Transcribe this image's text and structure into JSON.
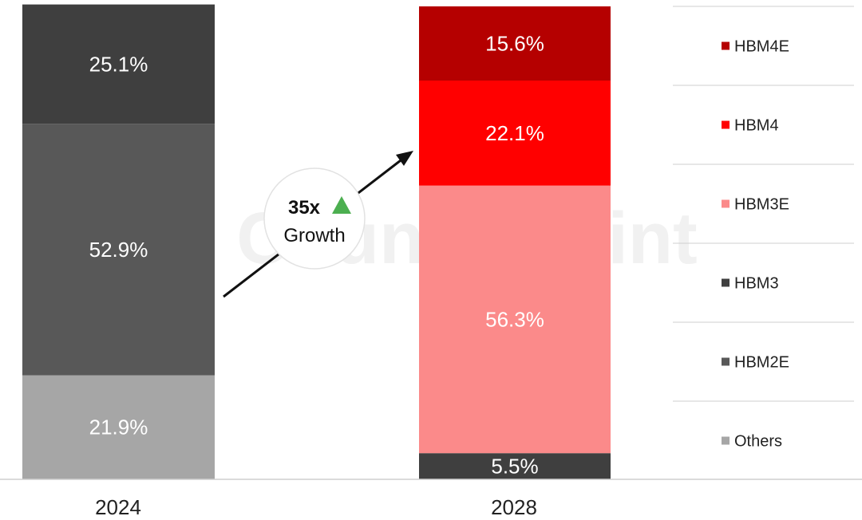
{
  "chart_data": {
    "type": "bar",
    "stacked": true,
    "percent": true,
    "categories": [
      "2024",
      "2028"
    ],
    "series": [
      {
        "name": "HBM4E",
        "color": "#b50000",
        "values": [
          0,
          15.6
        ],
        "labels": [
          null,
          "15.6%"
        ]
      },
      {
        "name": "HBM4",
        "color": "#ff0000",
        "values": [
          0,
          22.1
        ],
        "labels": [
          null,
          "22.1%"
        ]
      },
      {
        "name": "HBM3E",
        "color": "#fb8a8a",
        "values": [
          0,
          56.3
        ],
        "labels": [
          null,
          "56.3%"
        ]
      },
      {
        "name": "HBM3",
        "color": "#3f3f3f",
        "values": [
          25.1,
          5.5
        ],
        "labels": [
          "25.1%",
          "5.5%"
        ]
      },
      {
        "name": "HBM2E",
        "color": "#585858",
        "values": [
          52.9,
          0
        ],
        "labels": [
          "52.9%",
          null
        ]
      },
      {
        "name": "Others",
        "color": "#a6a6a6",
        "values": [
          21.9,
          0
        ],
        "labels": [
          "21.9%",
          null
        ]
      }
    ],
    "ylim": [
      0,
      100
    ],
    "annotation": {
      "multiplier": "35x",
      "text": "Growth",
      "arrow_color": "#4caf50"
    },
    "watermark": "Counterpoint",
    "legend_position": "right"
  }
}
